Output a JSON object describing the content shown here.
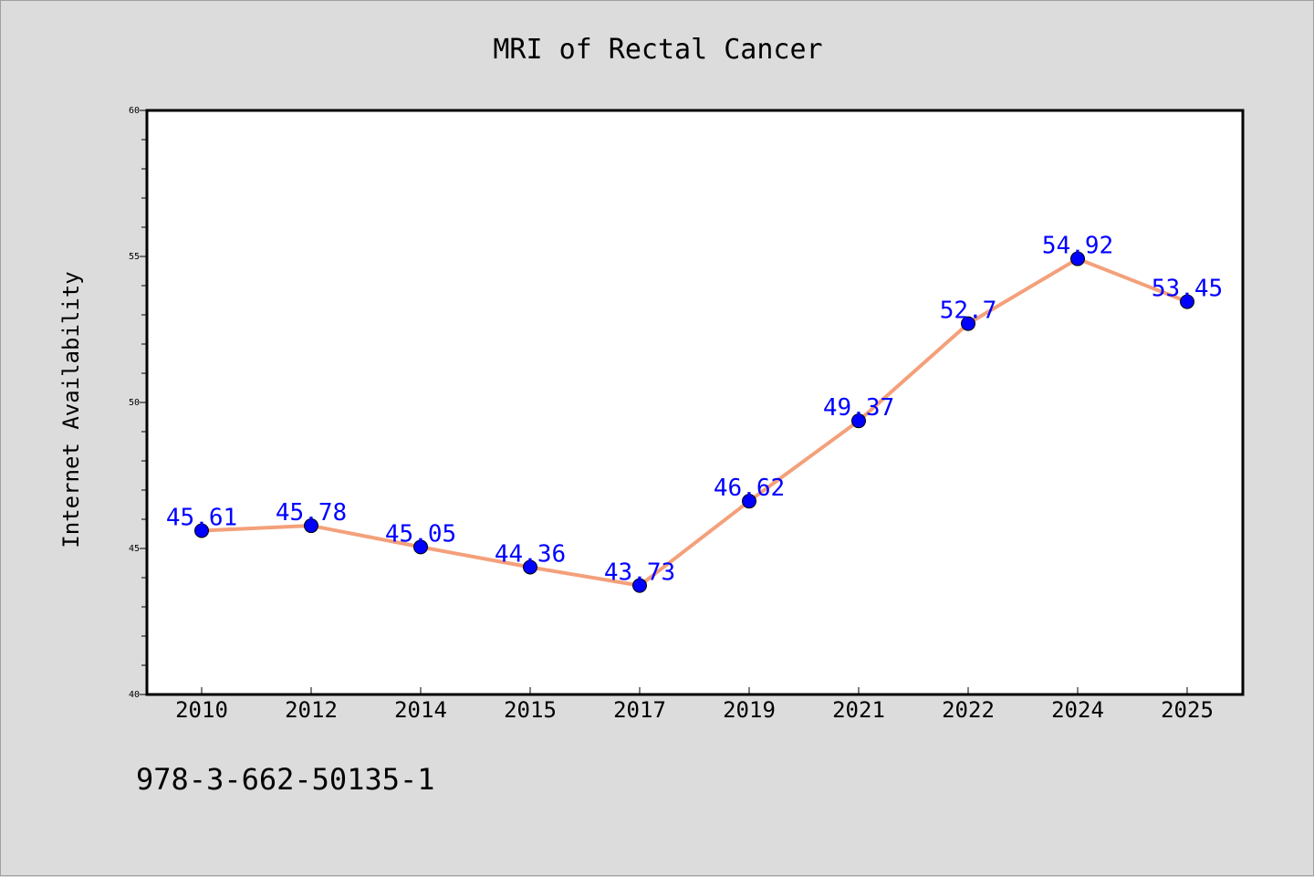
{
  "chart_data": {
    "type": "line",
    "title": "MRI of Rectal Cancer",
    "xlabel": "",
    "ylabel": "Internet Availability",
    "categories": [
      "2010",
      "2012",
      "2014",
      "2015",
      "2017",
      "2019",
      "2021",
      "2022",
      "2024",
      "2025"
    ],
    "series": [
      {
        "values": [
          45.61,
          45.78,
          45.05,
          44.36,
          43.73,
          46.62,
          49.37,
          52.7,
          54.92,
          53.45
        ],
        "line_color": "#f4a07a",
        "marker_color": "#0000ff",
        "labels": [
          "45.61",
          "45.78",
          "45.05",
          "44.36",
          "43.73",
          "46.62",
          "49.37",
          "52.7",
          "54.92",
          "53.45"
        ]
      }
    ],
    "ylim": [
      40,
      60
    ],
    "yticks": [
      "40",
      "45",
      "50",
      "55",
      "60"
    ],
    "grid": false,
    "legend": "none",
    "label_color": "#0000ff"
  },
  "footer": {
    "text": "978-3-662-50135-1"
  },
  "colors": {
    "background": "#dcdcdc",
    "plot_background": "#ffffff"
  }
}
